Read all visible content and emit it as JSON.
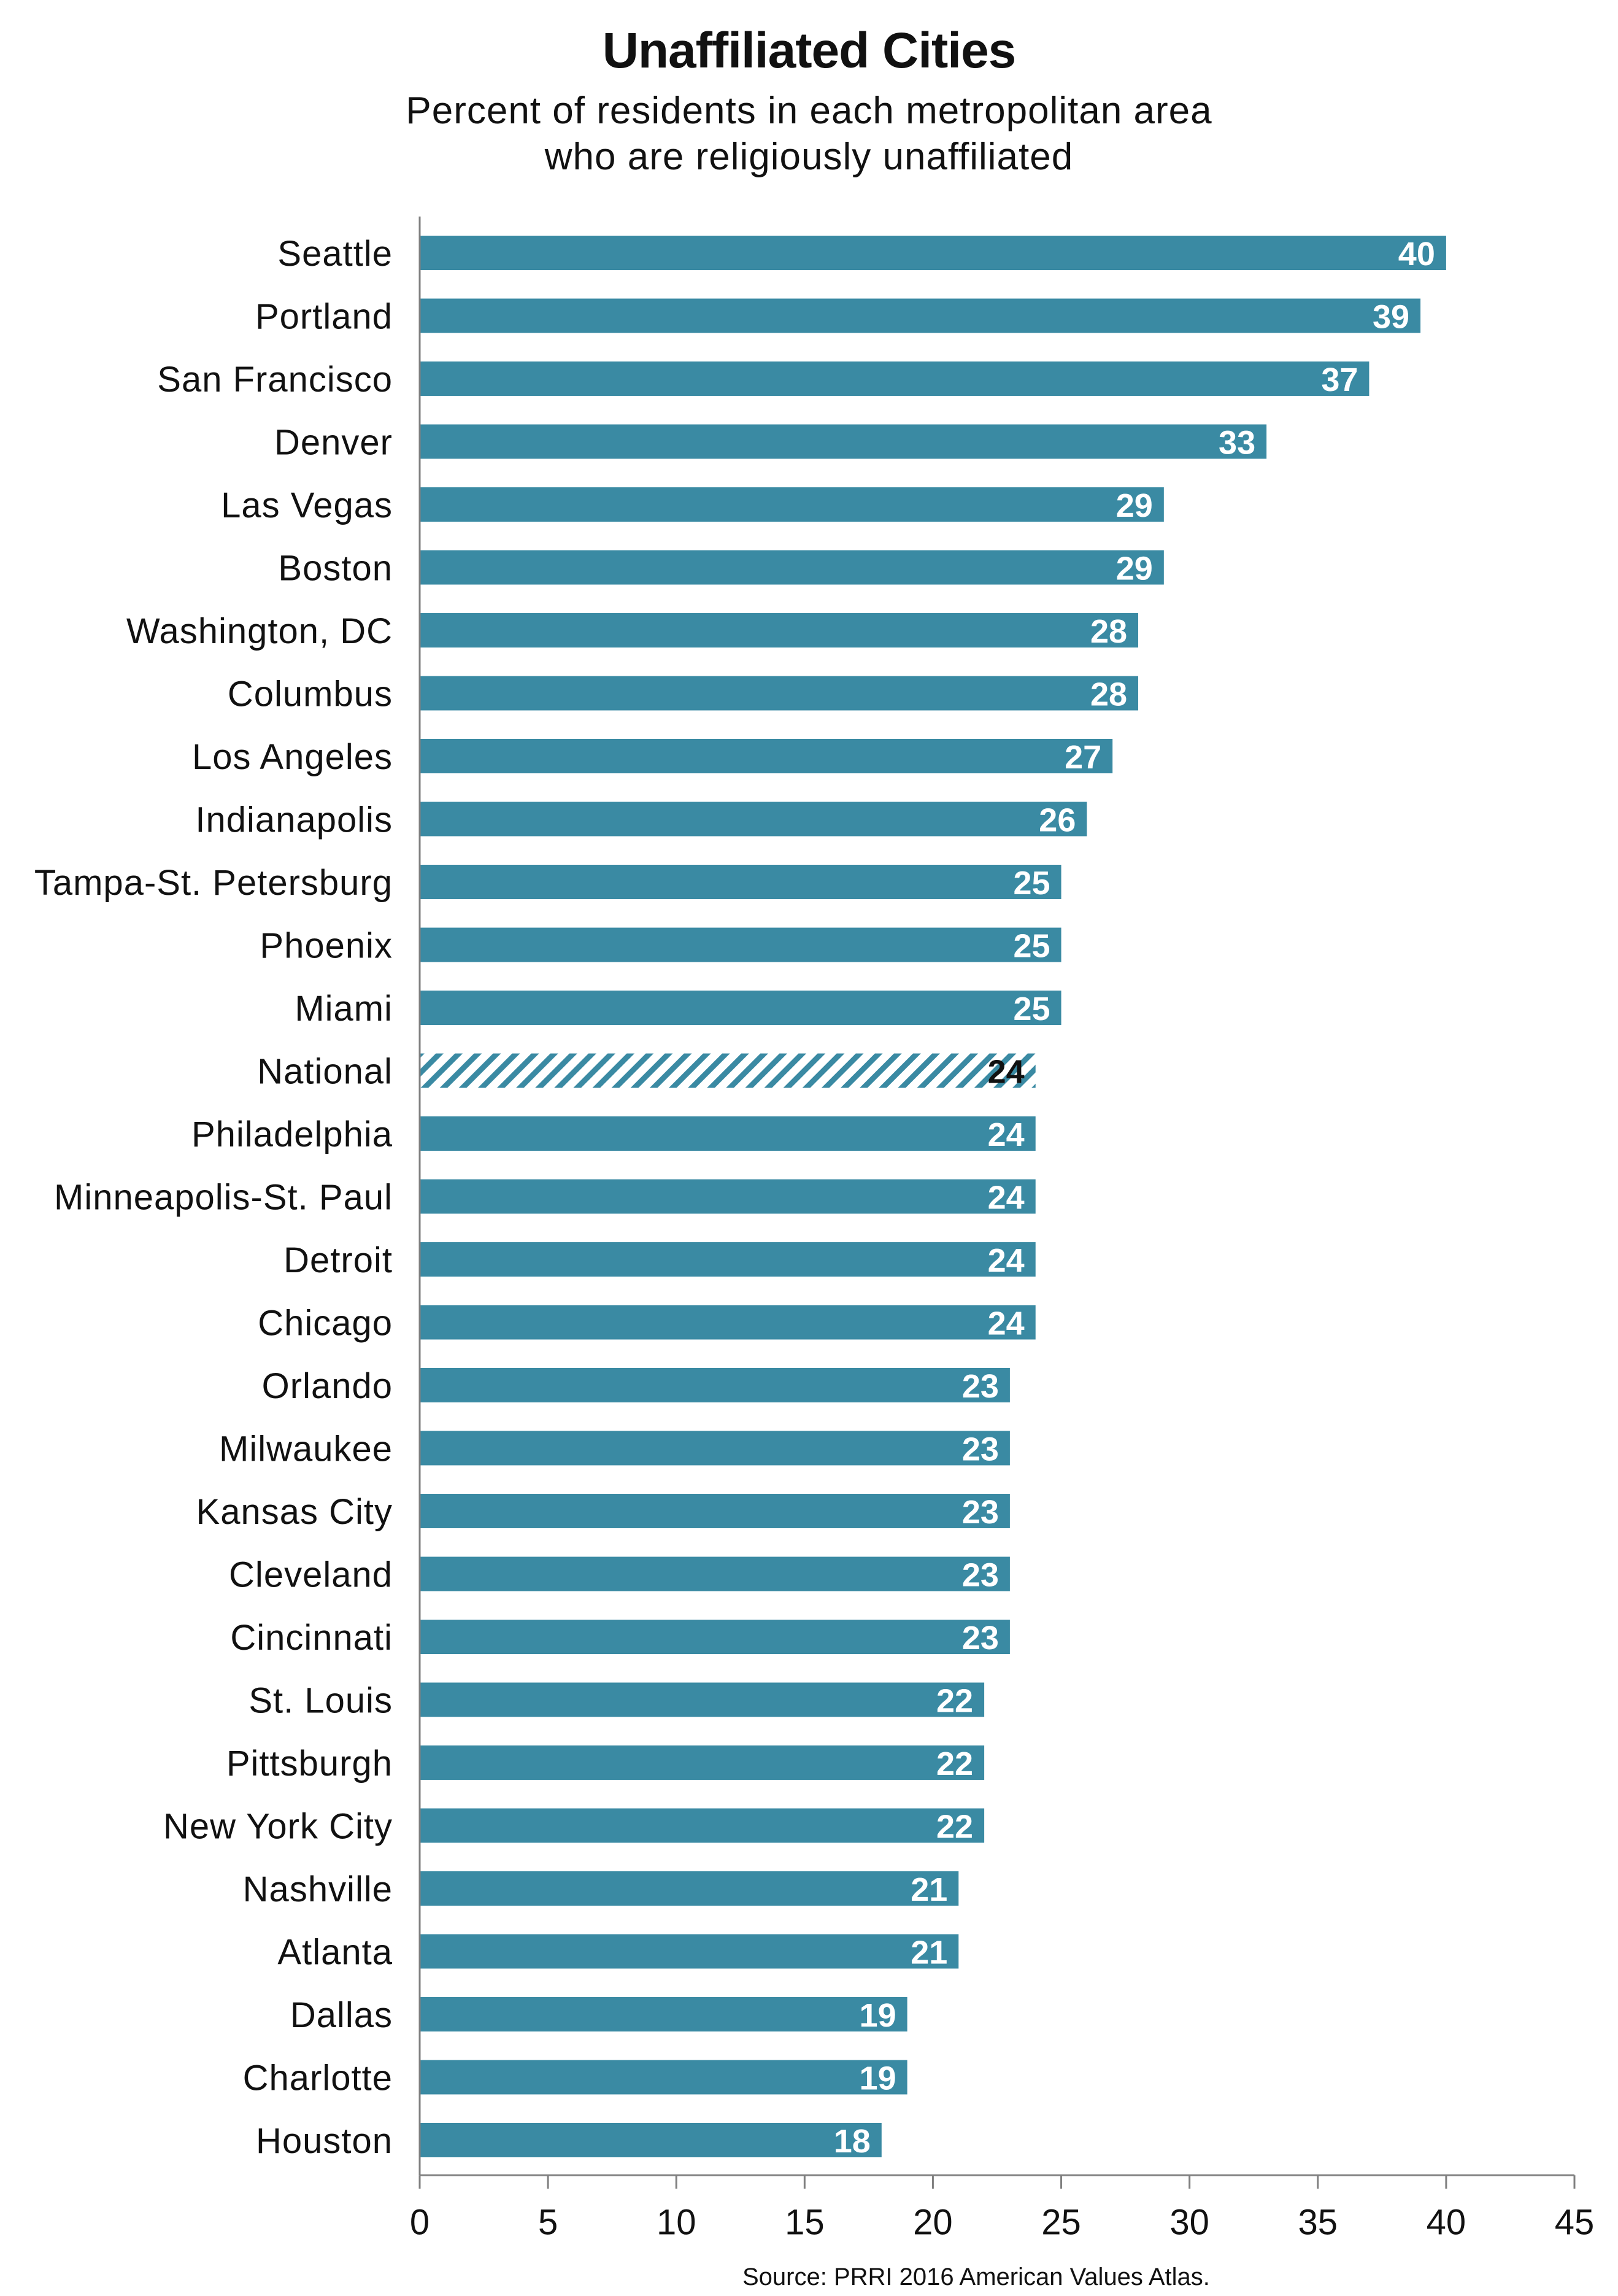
{
  "chart_data": {
    "type": "bar",
    "orientation": "horizontal",
    "title": "Unaffiliated Cities",
    "subtitle_lines": [
      "Percent of residents in each metropolitan area",
      "who are religiously unaffiliated"
    ],
    "categories": [
      "Seattle",
      "Portland",
      "San Francisco",
      "Denver",
      "Las Vegas",
      "Boston",
      "Washington, DC",
      "Columbus",
      "Los Angeles",
      "Indianapolis",
      "Tampa-St. Petersburg",
      "Phoenix",
      "Miami",
      "National",
      "Philadelphia",
      "Minneapolis-St. Paul",
      "Detroit",
      "Chicago",
      "Orlando",
      "Milwaukee",
      "Kansas City",
      "Cleveland",
      "Cincinnati",
      "St. Louis",
      "Pittsburgh",
      "New York City",
      "Nashville",
      "Atlanta",
      "Dallas",
      "Charlotte",
      "Houston"
    ],
    "values": [
      40,
      39,
      37,
      33,
      29,
      29,
      28,
      28,
      27,
      26,
      25,
      25,
      25,
      24,
      24,
      24,
      24,
      24,
      23,
      23,
      23,
      23,
      23,
      22,
      22,
      22,
      21,
      21,
      19,
      19,
      18
    ],
    "highlight_category": "National",
    "highlight_style": "hatched",
    "xlim": [
      0,
      45
    ],
    "x_ticks": [
      0,
      5,
      10,
      15,
      20,
      25,
      30,
      35,
      40,
      45
    ],
    "data_labels": true,
    "grid": false,
    "legend": "none",
    "source": "Source: PRRI 2016 American Values Atlas."
  },
  "colors": {
    "bar": "#3a8aa3",
    "axis": "#808080",
    "label_on_bar": "#ffffff",
    "label_highlight": "#111111",
    "text": "#111111"
  }
}
